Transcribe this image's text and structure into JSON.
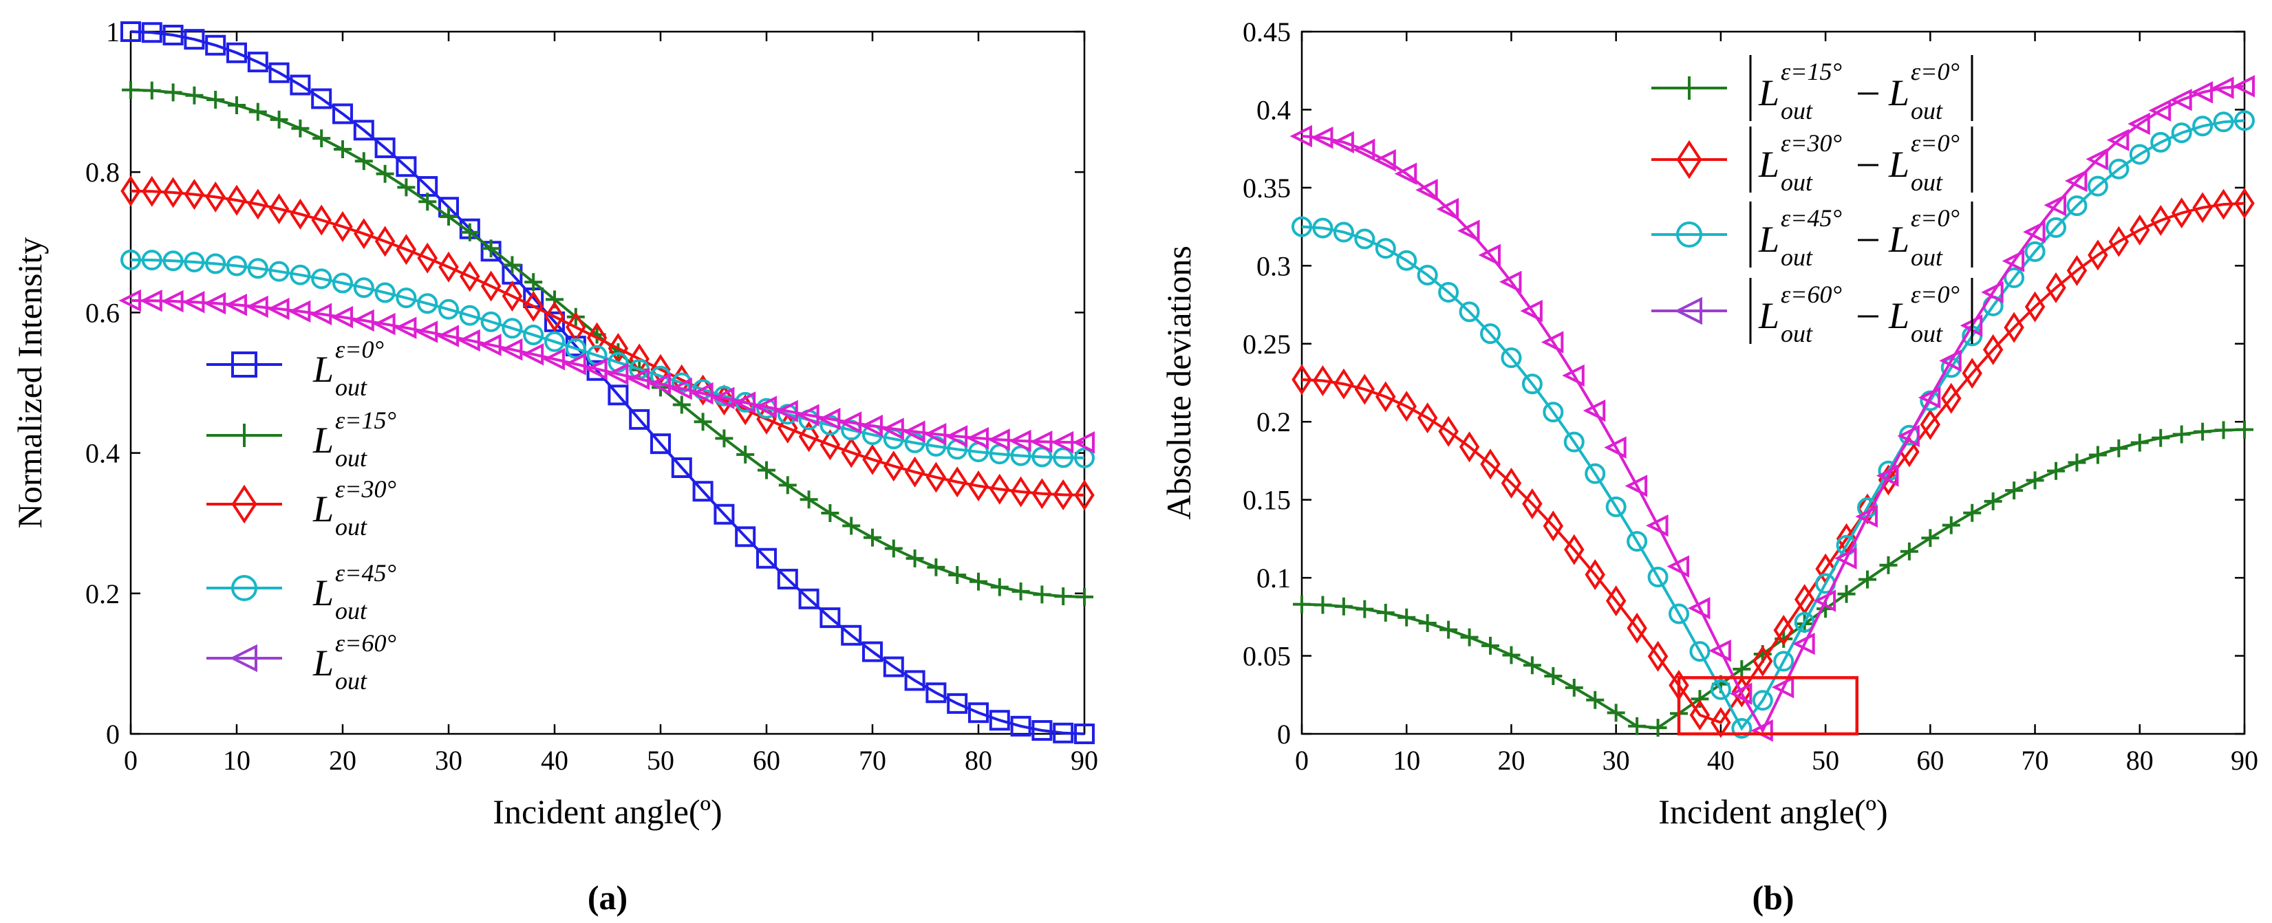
{
  "colors": {
    "blue": "#1f1fe8",
    "green": "#1e7a1e",
    "red": "#f01010",
    "cyan": "#19b6c6",
    "magenta": "#dd1fd1",
    "legend_purple": "#9a3fd0",
    "highlight_box": "#f01010"
  },
  "chart_data": [
    {
      "id": "a",
      "panel_label": "(a)",
      "type": "line",
      "xlabel": "Incident angle(º)",
      "ylabel": "Normalized Intensity",
      "xlim": [
        0,
        90
      ],
      "ylim": [
        0,
        1
      ],
      "xticks": [
        0,
        10,
        20,
        30,
        40,
        50,
        60,
        70,
        80,
        90
      ],
      "xtick_labels": [
        "0",
        "10",
        "20",
        "30",
        "40",
        "50",
        "60",
        "70",
        "80",
        "90"
      ],
      "yticks": [
        0,
        0.2,
        0.4,
        0.6,
        0.8,
        1
      ],
      "ytick_labels": [
        "0",
        "0.2",
        "0.4",
        "0.6",
        "0.8",
        "1"
      ],
      "legend_position": "lower-left",
      "series": [
        {
          "name": "L_out^{ε=0°}",
          "label_base": "L",
          "label_sub": "out",
          "label_sup": "ε=0°",
          "color": "blue",
          "marker": "square",
          "marker_step_deg": 2,
          "y_at_0": 1.0,
          "y_at_90": 0.0,
          "model": "cos2"
        },
        {
          "name": "L_out^{ε=15°}",
          "label_base": "L",
          "label_sub": "out",
          "label_sup": "ε=15°",
          "color": "green",
          "marker": "plus",
          "marker_step_deg": 2,
          "y_at_0": 0.917,
          "y_at_90": 0.195,
          "model": "cos2"
        },
        {
          "name": "L_out^{ε=30°}",
          "label_base": "L",
          "label_sub": "out",
          "label_sup": "ε=30°",
          "color": "red",
          "marker": "diamond",
          "marker_step_deg": 2,
          "y_at_0": 0.773,
          "y_at_90": 0.34,
          "model": "cos2"
        },
        {
          "name": "L_out^{ε=45°}",
          "label_base": "L",
          "label_sub": "out",
          "label_sup": "ε=45°",
          "color": "cyan",
          "marker": "circle",
          "marker_step_deg": 2,
          "y_at_0": 0.675,
          "y_at_90": 0.393,
          "model": "cos2"
        },
        {
          "name": "L_out^{ε=60°}",
          "label_base": "L",
          "label_sub": "out",
          "label_sup": "ε=60°",
          "color": "magenta",
          "legend_color": "legend_purple",
          "marker": "triangle-left",
          "marker_step_deg": 2,
          "y_at_0": 0.617,
          "y_at_90": 0.415,
          "model": "cos2"
        }
      ]
    },
    {
      "id": "b",
      "panel_label": "(b)",
      "type": "line",
      "xlabel": "Incident angle(º)",
      "ylabel": "Absolute deviations",
      "xlim": [
        0,
        90
      ],
      "ylim": [
        0,
        0.45
      ],
      "xticks": [
        0,
        10,
        20,
        30,
        40,
        50,
        60,
        70,
        80,
        90
      ],
      "xtick_labels": [
        "0",
        "10",
        "20",
        "30",
        "40",
        "50",
        "60",
        "70",
        "80",
        "90"
      ],
      "yticks": [
        0,
        0.05,
        0.1,
        0.15,
        0.2,
        0.25,
        0.3,
        0.35,
        0.4,
        0.45
      ],
      "ytick_labels": [
        "0",
        "0.05",
        "0.1",
        "0.15",
        "0.2",
        "0.25",
        "0.3",
        "0.35",
        "0.4",
        "0.45"
      ],
      "legend_position": "top-center",
      "highlight_region": {
        "x": [
          36,
          53
        ],
        "y": [
          0,
          0.036
        ]
      },
      "series": [
        {
          "name": "|L_out^{ε=15°} − L_out^{ε=0°}|",
          "label_sup1": "ε=15°",
          "label_sup2": "ε=0°",
          "color": "green",
          "marker": "plus",
          "marker_step_deg": 2,
          "ref_index": 1,
          "base_index": 0
        },
        {
          "name": "|L_out^{ε=30°} − L_out^{ε=0°}|",
          "label_sup1": "ε=30°",
          "label_sup2": "ε=0°",
          "color": "red",
          "marker": "diamond",
          "marker_step_deg": 2,
          "ref_index": 2,
          "base_index": 0
        },
        {
          "name": "|L_out^{ε=45°} − L_out^{ε=0°}|",
          "label_sup1": "ε=45°",
          "label_sup2": "ε=0°",
          "color": "cyan",
          "marker": "circle",
          "marker_step_deg": 2,
          "ref_index": 3,
          "base_index": 0
        },
        {
          "name": "|L_out^{ε=60°} − L_out^{ε=0°}|",
          "label_sup1": "ε=60°",
          "label_sup2": "ε=0°",
          "color": "magenta",
          "legend_color": "legend_purple",
          "marker": "triangle-left",
          "marker_step_deg": 2,
          "ref_index": 4,
          "base_index": 0
        }
      ]
    }
  ]
}
